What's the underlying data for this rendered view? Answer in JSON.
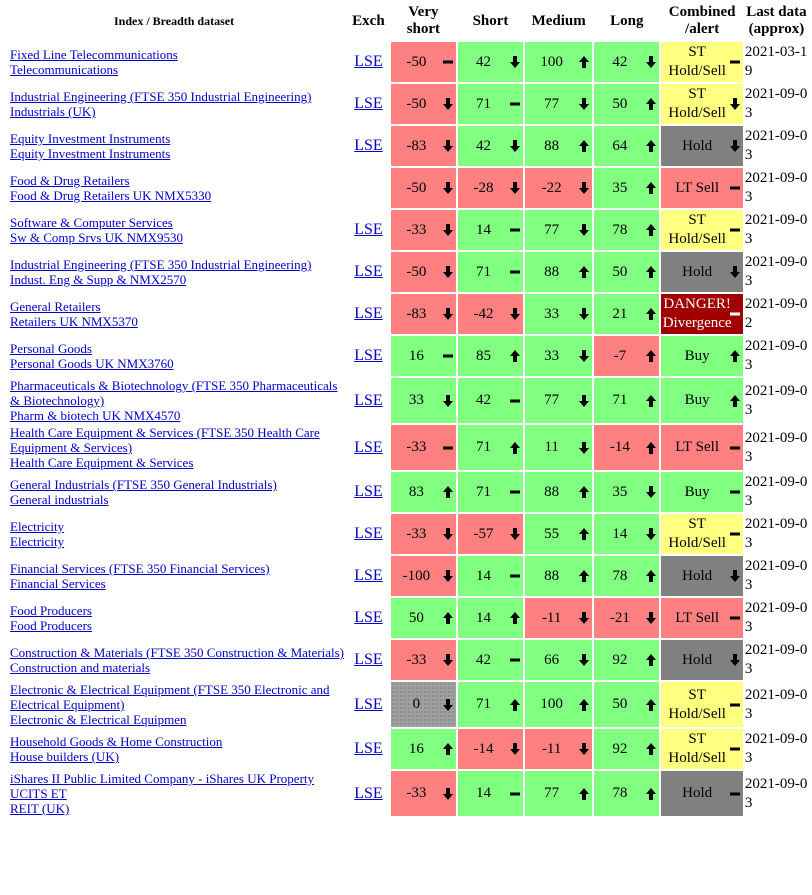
{
  "table": {
    "headers": [
      "Index / Breadth dataset",
      "Exch",
      "Very short",
      "Short",
      "Medium",
      "Long",
      "Combined /alert",
      "Last data (approx)"
    ],
    "rows": [
      {
        "index": [
          "Fixed Line Telecommunications",
          "Telecommunications"
        ],
        "exch": "LSE",
        "scores": [
          {
            "value": -50,
            "trend": "flat",
            "tone": "r"
          },
          {
            "value": 42,
            "trend": "down",
            "tone": "g"
          },
          {
            "value": 100,
            "trend": "up",
            "tone": "g"
          },
          {
            "value": 42,
            "trend": "down",
            "tone": "g"
          }
        ],
        "combined": {
          "label": "ST Hold/Sell",
          "trend": "flat",
          "tone": "y"
        },
        "date": "2021-03-19"
      },
      {
        "index": [
          "Industrial Engineering (FTSE 350 Industrial Engineering)",
          "Industrials (UK)"
        ],
        "exch": "LSE",
        "scores": [
          {
            "value": -50,
            "trend": "down",
            "tone": "r"
          },
          {
            "value": 71,
            "trend": "flat",
            "tone": "g"
          },
          {
            "value": 77,
            "trend": "down",
            "tone": "g"
          },
          {
            "value": 50,
            "trend": "up",
            "tone": "g"
          }
        ],
        "combined": {
          "label": "ST Hold/Sell",
          "trend": "down",
          "tone": "y"
        },
        "date": "2021-09-03"
      },
      {
        "index": [
          "Equity Investment Instruments",
          "Equity Investment Instruments"
        ],
        "exch": "LSE",
        "scores": [
          {
            "value": -83,
            "trend": "down",
            "tone": "r"
          },
          {
            "value": 42,
            "trend": "down",
            "tone": "g"
          },
          {
            "value": 88,
            "trend": "up",
            "tone": "g"
          },
          {
            "value": 64,
            "trend": "up",
            "tone": "g"
          }
        ],
        "combined": {
          "label": "Hold",
          "trend": "down",
          "tone": "gray"
        },
        "date": "2021-09-03"
      },
      {
        "index": [
          "Food & Drug Retailers",
          "Food & Drug Retailers UK NMX5330"
        ],
        "exch": null,
        "scores": [
          {
            "value": -50,
            "trend": "down",
            "tone": "r"
          },
          {
            "value": -28,
            "trend": "down",
            "tone": "r"
          },
          {
            "value": -22,
            "trend": "down",
            "tone": "r"
          },
          {
            "value": 35,
            "trend": "up",
            "tone": "g"
          }
        ],
        "combined": {
          "label": "LT Sell",
          "trend": "flat",
          "tone": "r"
        },
        "date": "2021-09-03"
      },
      {
        "index": [
          "Software & Computer Services",
          "Sw & Comp Srvs UK NMX9530"
        ],
        "exch": "LSE",
        "scores": [
          {
            "value": -33,
            "trend": "down",
            "tone": "r"
          },
          {
            "value": 14,
            "trend": "flat",
            "tone": "g"
          },
          {
            "value": 77,
            "trend": "down",
            "tone": "g"
          },
          {
            "value": 78,
            "trend": "up",
            "tone": "g"
          }
        ],
        "combined": {
          "label": "ST Hold/Sell",
          "trend": "flat",
          "tone": "y"
        },
        "date": "2021-09-03"
      },
      {
        "index": [
          "Industrial Engineering (FTSE 350 Industrial Engineering)",
          "Indust. Eng & Supp & NMX2570"
        ],
        "exch": "LSE",
        "scores": [
          {
            "value": -50,
            "trend": "down",
            "tone": "r"
          },
          {
            "value": 71,
            "trend": "flat",
            "tone": "g"
          },
          {
            "value": 88,
            "trend": "up",
            "tone": "g"
          },
          {
            "value": 50,
            "trend": "up",
            "tone": "g"
          }
        ],
        "combined": {
          "label": "Hold",
          "trend": "down",
          "tone": "gray"
        },
        "date": "2021-09-03"
      },
      {
        "index": [
          "General Retailers",
          "Retailers UK NMX5370"
        ],
        "exch": "LSE",
        "scores": [
          {
            "value": -83,
            "trend": "down",
            "tone": "r"
          },
          {
            "value": -42,
            "trend": "down",
            "tone": "r"
          },
          {
            "value": 33,
            "trend": "down",
            "tone": "g"
          },
          {
            "value": 21,
            "trend": "up",
            "tone": "g"
          }
        ],
        "combined": {
          "label": "DANGER! Divergence",
          "trend": "flat",
          "tone": "dr"
        },
        "date": "2021-09-02"
      },
      {
        "index": [
          "Personal Goods",
          "Personal Goods UK NMX3760"
        ],
        "exch": "LSE",
        "scores": [
          {
            "value": 16,
            "trend": "flat",
            "tone": "g"
          },
          {
            "value": 85,
            "trend": "up",
            "tone": "g"
          },
          {
            "value": 33,
            "trend": "down",
            "tone": "g"
          },
          {
            "value": -7,
            "trend": "up",
            "tone": "r"
          }
        ],
        "combined": {
          "label": "Buy",
          "trend": "up",
          "tone": "g"
        },
        "date": "2021-09-03"
      },
      {
        "index": [
          "Pharmaceuticals & Biotechnology (FTSE 350 Pharmaceuticals & Biotechnology)",
          "Pharm & biotech UK NMX4570"
        ],
        "exch": "LSE",
        "scores": [
          {
            "value": 33,
            "trend": "down",
            "tone": "g"
          },
          {
            "value": 42,
            "trend": "flat",
            "tone": "g"
          },
          {
            "value": 77,
            "trend": "down",
            "tone": "g"
          },
          {
            "value": 71,
            "trend": "up",
            "tone": "g"
          }
        ],
        "combined": {
          "label": "Buy",
          "trend": "up",
          "tone": "g"
        },
        "date": "2021-09-03"
      },
      {
        "index": [
          "Health Care Equipment & Services (FTSE 350 Health Care Equipment & Services)",
          "Health Care Equipment & Services"
        ],
        "exch": "LSE",
        "scores": [
          {
            "value": -33,
            "trend": "flat",
            "tone": "r"
          },
          {
            "value": 71,
            "trend": "up",
            "tone": "g"
          },
          {
            "value": 11,
            "trend": "down",
            "tone": "g"
          },
          {
            "value": -14,
            "trend": "up",
            "tone": "r"
          }
        ],
        "combined": {
          "label": "LT Sell",
          "trend": "flat",
          "tone": "r"
        },
        "date": "2021-09-03"
      },
      {
        "index": [
          "General Industrials (FTSE 350 General Industrials)",
          "General industrials"
        ],
        "exch": "LSE",
        "scores": [
          {
            "value": 83,
            "trend": "up",
            "tone": "g"
          },
          {
            "value": 71,
            "trend": "flat",
            "tone": "g"
          },
          {
            "value": 88,
            "trend": "up",
            "tone": "g"
          },
          {
            "value": 35,
            "trend": "down",
            "tone": "g"
          }
        ],
        "combined": {
          "label": "Buy",
          "trend": "flat",
          "tone": "g"
        },
        "date": "2021-09-03"
      },
      {
        "index": [
          "Electricity",
          "Electricity"
        ],
        "exch": "LSE",
        "scores": [
          {
            "value": -33,
            "trend": "down",
            "tone": "r"
          },
          {
            "value": -57,
            "trend": "down",
            "tone": "r"
          },
          {
            "value": 55,
            "trend": "up",
            "tone": "g"
          },
          {
            "value": 14,
            "trend": "down",
            "tone": "g"
          }
        ],
        "combined": {
          "label": "ST Hold/Sell",
          "trend": "flat",
          "tone": "y"
        },
        "date": "2021-09-03"
      },
      {
        "index": [
          "Financial Services (FTSE 350 Financial Services)",
          "Financial Services"
        ],
        "exch": "LSE",
        "scores": [
          {
            "value": -100,
            "trend": "down",
            "tone": "r"
          },
          {
            "value": 14,
            "trend": "flat",
            "tone": "g"
          },
          {
            "value": 88,
            "trend": "up",
            "tone": "g"
          },
          {
            "value": 78,
            "trend": "up",
            "tone": "g"
          }
        ],
        "combined": {
          "label": "Hold",
          "trend": "down",
          "tone": "gray"
        },
        "date": "2021-09-03"
      },
      {
        "index": [
          "Food Producers",
          "Food Producers"
        ],
        "exch": "LSE",
        "scores": [
          {
            "value": 50,
            "trend": "up",
            "tone": "g"
          },
          {
            "value": 14,
            "trend": "up",
            "tone": "g"
          },
          {
            "value": -11,
            "trend": "down",
            "tone": "r"
          },
          {
            "value": -21,
            "trend": "down",
            "tone": "r"
          }
        ],
        "combined": {
          "label": "LT Sell",
          "trend": "flat",
          "tone": "r"
        },
        "date": "2021-09-03"
      },
      {
        "index": [
          "Construction & Materials (FTSE 350 Construction & Materials)",
          "Construction and materials"
        ],
        "exch": "LSE",
        "scores": [
          {
            "value": -33,
            "trend": "down",
            "tone": "r"
          },
          {
            "value": 42,
            "trend": "flat",
            "tone": "g"
          },
          {
            "value": 66,
            "trend": "down",
            "tone": "g"
          },
          {
            "value": 92,
            "trend": "up",
            "tone": "g"
          }
        ],
        "combined": {
          "label": "Hold",
          "trend": "down",
          "tone": "gray"
        },
        "date": "2021-09-03"
      },
      {
        "index": [
          "Electronic & Electrical Equipment (FTSE 350 Electronic and Electrical Equipment)",
          "Electronic & Electrical Equipmen"
        ],
        "exch": "LSE",
        "scores": [
          {
            "value": 0,
            "trend": "down",
            "tone": "z"
          },
          {
            "value": 71,
            "trend": "up",
            "tone": "g"
          },
          {
            "value": 100,
            "trend": "up",
            "tone": "g"
          },
          {
            "value": 50,
            "trend": "up",
            "tone": "g"
          }
        ],
        "combined": {
          "label": "ST Hold/Sell",
          "trend": "flat",
          "tone": "y"
        },
        "date": "2021-09-03"
      },
      {
        "index": [
          "Household Goods & Home Construction",
          "House builders (UK)"
        ],
        "exch": "LSE",
        "scores": [
          {
            "value": 16,
            "trend": "up",
            "tone": "g"
          },
          {
            "value": -14,
            "trend": "down",
            "tone": "r"
          },
          {
            "value": -11,
            "trend": "down",
            "tone": "r"
          },
          {
            "value": 92,
            "trend": "up",
            "tone": "g"
          }
        ],
        "combined": {
          "label": "ST Hold/Sell",
          "trend": "flat",
          "tone": "y"
        },
        "date": "2021-09-03"
      },
      {
        "index": [
          "iShares II Public Limited Company - iShares UK Property UCITS ET",
          "REIT (UK)"
        ],
        "exch": "LSE",
        "scores": [
          {
            "value": -33,
            "trend": "down",
            "tone": "r"
          },
          {
            "value": 14,
            "trend": "flat",
            "tone": "g"
          },
          {
            "value": 77,
            "trend": "up",
            "tone": "g"
          },
          {
            "value": 78,
            "trend": "up",
            "tone": "g"
          }
        ],
        "combined": {
          "label": "Hold",
          "trend": "flat",
          "tone": "gray"
        },
        "date": "2021-09-03"
      }
    ]
  }
}
